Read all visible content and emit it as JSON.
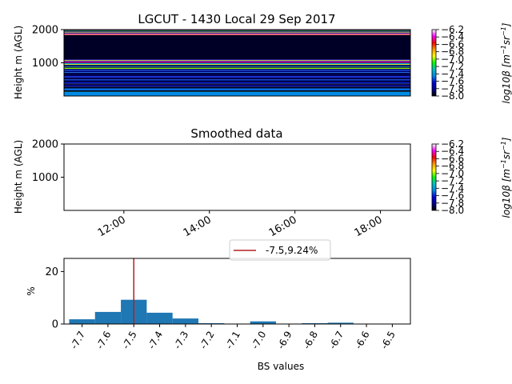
{
  "chart_data": [
    {
      "type": "heatmap",
      "title": "LGCUT - 1430 Local 29 Sep 2017",
      "ylabel": "Height m (AGL)",
      "ylim": [
        0,
        2000
      ],
      "yticks": [
        1000,
        2000
      ],
      "colorbar": {
        "label_parts": [
          "log10",
          "β",
          " [m",
          "−1",
          "sr",
          "−1",
          "]"
        ],
        "range": [
          -8.0,
          -6.2
        ],
        "ticks": [
          "-6.2",
          "-6.4",
          "-6.6",
          "-6.8",
          "-7.0",
          "-7.2",
          "-7.4",
          "-7.6",
          "-7.8",
          "-8.0"
        ],
        "colormap": [
          "#000000",
          "#00008a",
          "#0000dc",
          "#0088e8",
          "#00c0c0",
          "#00ff00",
          "#ffff00",
          "#ff9900",
          "#ff0000",
          "#ff00ff",
          "#ffffff"
        ]
      },
      "layers": [
        {
          "bottom": 0,
          "top": 130,
          "value": -7.45
        },
        {
          "bottom": 130,
          "top": 170,
          "value": -8.0
        },
        {
          "bottom": 170,
          "top": 230,
          "value": -7.5
        },
        {
          "bottom": 230,
          "top": 285,
          "value": -7.95
        },
        {
          "bottom": 285,
          "top": 300,
          "value": -7.6
        },
        {
          "bottom": 300,
          "top": 340,
          "value": -7.85
        },
        {
          "bottom": 340,
          "top": 380,
          "value": -7.95
        },
        {
          "bottom": 380,
          "top": 410,
          "value": -7.6
        },
        {
          "bottom": 410,
          "top": 470,
          "value": -7.9
        },
        {
          "bottom": 470,
          "top": 500,
          "value": -7.55
        },
        {
          "bottom": 500,
          "top": 560,
          "value": -7.9
        },
        {
          "bottom": 560,
          "top": 600,
          "value": -7.6
        },
        {
          "bottom": 600,
          "top": 700,
          "value": -7.9
        },
        {
          "bottom": 700,
          "top": 720,
          "value": -7.5
        },
        {
          "bottom": 720,
          "top": 760,
          "value": -7.85
        },
        {
          "bottom": 760,
          "top": 790,
          "value": -7.55
        },
        {
          "bottom": 790,
          "top": 820,
          "value": -7.9
        },
        {
          "bottom": 820,
          "top": 850,
          "value": -7.0
        },
        {
          "bottom": 850,
          "top": 880,
          "value": -7.95
        },
        {
          "bottom": 880,
          "top": 900,
          "value": -7.4
        },
        {
          "bottom": 900,
          "top": 940,
          "value": -7.9
        },
        {
          "bottom": 940,
          "top": 960,
          "value": -6.9
        },
        {
          "bottom": 960,
          "top": 985,
          "value": -7.3
        },
        {
          "bottom": 985,
          "top": 1010,
          "value": -7.8
        },
        {
          "bottom": 1010,
          "top": 1040,
          "value": -6.5
        },
        {
          "bottom": 1040,
          "top": 1060,
          "value": -7.6
        },
        {
          "bottom": 1060,
          "top": 1080,
          "value": -6.85
        },
        {
          "bottom": 1080,
          "top": 1100,
          "value": -7.7
        },
        {
          "bottom": 1100,
          "top": 1840,
          "value": -7.95
        },
        {
          "bottom": 1840,
          "top": 1850,
          "value": -6.8
        },
        {
          "bottom": 1850,
          "top": 1860,
          "value": -6.5
        },
        {
          "bottom": 1860,
          "top": 1875,
          "value": -6.3
        },
        {
          "bottom": 1875,
          "top": 1885,
          "value": -6.5
        },
        {
          "bottom": 1885,
          "top": 1895,
          "value": -7.7
        },
        {
          "bottom": 1895,
          "top": 1905,
          "value": -8.0
        },
        {
          "bottom": 1905,
          "top": 1915,
          "value": -6.2
        },
        {
          "bottom": 1915,
          "top": 1925,
          "value": -8.0
        },
        {
          "bottom": 1925,
          "top": 1935,
          "value": -6.8
        },
        {
          "bottom": 1935,
          "top": 1945,
          "value": -8.0
        },
        {
          "bottom": 1945,
          "top": 1955,
          "value": -7.6
        },
        {
          "bottom": 1955,
          "top": 1965,
          "value": -8.0
        },
        {
          "bottom": 1965,
          "top": 1975,
          "value": -7.2
        },
        {
          "bottom": 1975,
          "top": 1985,
          "value": -8.0
        },
        {
          "bottom": 1985,
          "top": 2000,
          "value": -6.3
        }
      ]
    },
    {
      "type": "heatmap",
      "title": "Smoothed data",
      "ylabel": "Height m (AGL)",
      "ylim": [
        0,
        2000
      ],
      "yticks": [
        1000,
        2000
      ],
      "xticks": [
        "12:00",
        "14:00",
        "16:00",
        "18:00"
      ],
      "xtick_hours": [
        12,
        14,
        16,
        18
      ],
      "xlim_hours": [
        10.6,
        18.7
      ],
      "colorbar": {
        "label_parts": [
          "log10",
          "β",
          " [m",
          "−1",
          "sr",
          "−1",
          "]"
        ],
        "range": [
          -8.0,
          -6.2
        ],
        "ticks": [
          "-6.2",
          "-6.4",
          "-6.6",
          "-6.8",
          "-7.0",
          "-7.2",
          "-7.4",
          "-7.6",
          "-7.8",
          "-8.0"
        ]
      }
    },
    {
      "type": "bar",
      "xlabel": "BS values",
      "ylabel": "%",
      "ylim": [
        0,
        25
      ],
      "yticks": [
        0,
        20
      ],
      "xlim": [
        -7.77,
        -6.43
      ],
      "categories": [
        "-7.7",
        "-7.6",
        "-7.5",
        "-7.4",
        "-7.3",
        "-7.2",
        "-7.1",
        "-7.0",
        "-6.9",
        "-6.8",
        "-6.7",
        "-6.6",
        "-6.5"
      ],
      "category_centers": [
        -7.7,
        -7.6,
        -7.5,
        -7.4,
        -7.3,
        -7.2,
        -7.1,
        -7.0,
        -6.9,
        -6.8,
        -6.7,
        -6.6,
        -6.5
      ],
      "bins": [
        {
          "start": -7.75,
          "end": -7.65,
          "value": 1.8
        },
        {
          "start": -7.65,
          "end": -7.55,
          "value": 4.6
        },
        {
          "start": -7.55,
          "end": -7.45,
          "value": 9.24
        },
        {
          "start": -7.45,
          "end": -7.35,
          "value": 4.3
        },
        {
          "start": -7.35,
          "end": -7.25,
          "value": 2.1
        },
        {
          "start": -7.25,
          "end": -7.15,
          "value": 0.3
        },
        {
          "start": -7.15,
          "end": -7.05,
          "value": 0.1
        },
        {
          "start": -7.05,
          "end": -6.95,
          "value": 1.0
        },
        {
          "start": -6.95,
          "end": -6.85,
          "value": 0.1
        },
        {
          "start": -6.85,
          "end": -6.75,
          "value": 0.3
        },
        {
          "start": -6.75,
          "end": -6.65,
          "value": 0.5
        },
        {
          "start": -6.65,
          "end": -6.55,
          "value": 0.1
        },
        {
          "start": -6.55,
          "end": -6.45,
          "value": 0.05
        }
      ],
      "bar_color": "#1f77b4",
      "vline": {
        "x": -7.5,
        "color": "#b22222"
      },
      "legend": {
        "label": "-7.5,9.24%",
        "placement": "top-center"
      }
    }
  ]
}
